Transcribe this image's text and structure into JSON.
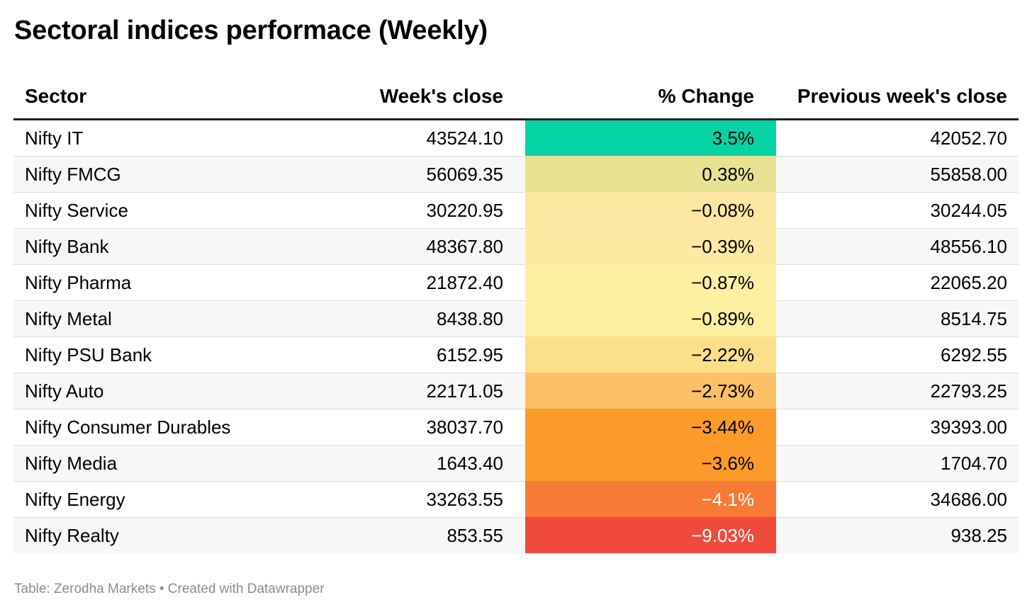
{
  "title": "Sectoral indices performace (Weekly)",
  "footer": "Table: Zerodha Markets • Created with Datawrapper",
  "chart_data": {
    "type": "table",
    "columns": [
      "Sector",
      "Week's close",
      "% Change",
      "Previous week's close"
    ],
    "rows": [
      {
        "sector": "Nifty IT",
        "close": "43524.10",
        "change": "3.5%",
        "change_value": 3.5,
        "prev": "42052.70",
        "color": "#05d3a4",
        "text_color": "#000000"
      },
      {
        "sector": "Nifty FMCG",
        "close": "56069.35",
        "change": "0.38%",
        "change_value": 0.38,
        "prev": "55858.00",
        "color": "#e8e292",
        "text_color": "#000000"
      },
      {
        "sector": "Nifty Service",
        "close": "30220.95",
        "change": "−0.08%",
        "change_value": -0.08,
        "prev": "30244.05",
        "color": "#fde6a1",
        "text_color": "#000000"
      },
      {
        "sector": "Nifty Bank",
        "close": "48367.80",
        "change": "−0.39%",
        "change_value": -0.39,
        "prev": "48556.10",
        "color": "#fde9a2",
        "text_color": "#000000"
      },
      {
        "sector": "Nifty Pharma",
        "close": "21872.40",
        "change": "−0.87%",
        "change_value": -0.87,
        "prev": "22065.20",
        "color": "#fdf0a2",
        "text_color": "#000000"
      },
      {
        "sector": "Nifty Metal",
        "close": "8438.80",
        "change": "−0.89%",
        "change_value": -0.89,
        "prev": "8514.75",
        "color": "#fdefa0",
        "text_color": "#000000"
      },
      {
        "sector": "Nifty PSU Bank",
        "close": "6152.95",
        "change": "−2.22%",
        "change_value": -2.22,
        "prev": "6292.55",
        "color": "#fddf8a",
        "text_color": "#000000"
      },
      {
        "sector": "Nifty Auto",
        "close": "22171.05",
        "change": "−2.73%",
        "change_value": -2.73,
        "prev": "22793.25",
        "color": "#fcc066",
        "text_color": "#000000"
      },
      {
        "sector": "Nifty Consumer Durables",
        "close": "38037.70",
        "change": "−3.44%",
        "change_value": -3.44,
        "prev": "39393.00",
        "color": "#fc9b2a",
        "text_color": "#000000"
      },
      {
        "sector": "Nifty Media",
        "close": "1643.40",
        "change": "−3.6%",
        "change_value": -3.6,
        "prev": "1704.70",
        "color": "#fc9b2a",
        "text_color": "#000000"
      },
      {
        "sector": "Nifty Energy",
        "close": "33263.55",
        "change": "−4.1%",
        "change_value": -4.1,
        "prev": "34686.00",
        "color": "#f77b36",
        "text_color": "#ffffff"
      },
      {
        "sector": "Nifty Realty",
        "close": "853.55",
        "change": "−9.03%",
        "change_value": -9.03,
        "prev": "938.25",
        "color": "#ef4b3d",
        "text_color": "#ffffff"
      }
    ]
  }
}
